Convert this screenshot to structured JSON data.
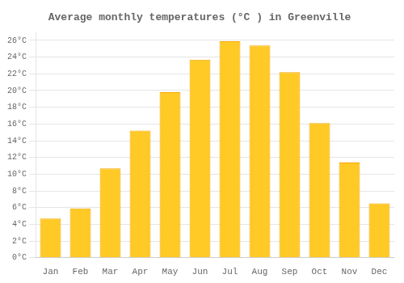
{
  "chart_data": {
    "type": "bar",
    "title": "Average monthly temperatures (°C ) in Greenville",
    "categories": [
      "Jan",
      "Feb",
      "Mar",
      "Apr",
      "May",
      "Jun",
      "Jul",
      "Aug",
      "Sep",
      "Oct",
      "Nov",
      "Dec"
    ],
    "values": [
      4.7,
      5.9,
      10.7,
      15.2,
      19.8,
      23.7,
      25.9,
      25.4,
      22.2,
      16.1,
      11.4,
      6.5
    ],
    "color": "#FFC926",
    "ylim": [
      0,
      27
    ],
    "yticks": [
      {
        "value": 0,
        "label": "0°C"
      },
      {
        "value": 2,
        "label": "2°C"
      },
      {
        "value": 4,
        "label": "4°C"
      },
      {
        "value": 6,
        "label": "6°C"
      },
      {
        "value": 8,
        "label": "8°C"
      },
      {
        "value": 10,
        "label": "10°C"
      },
      {
        "value": 12,
        "label": "12°C"
      },
      {
        "value": 14,
        "label": "14°C"
      },
      {
        "value": 16,
        "label": "16°C"
      },
      {
        "value": 18,
        "label": "18°C"
      },
      {
        "value": 20,
        "label": "20°C"
      },
      {
        "value": 22,
        "label": "22°C"
      },
      {
        "value": 24,
        "label": "24°C"
      },
      {
        "value": 26,
        "label": "26°C"
      }
    ],
    "grid": true
  }
}
